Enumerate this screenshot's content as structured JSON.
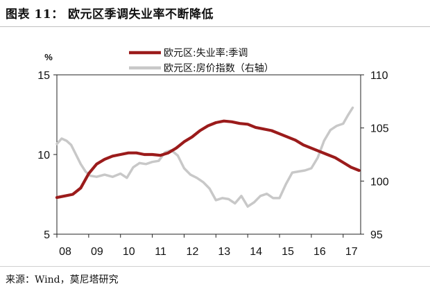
{
  "figure": {
    "title": "图表 11：  欧元区季调失业率不断降低",
    "source": "来源：Wind，莫尼塔研究"
  },
  "chart_data": {
    "type": "line",
    "x_ticks": [
      "08",
      "09",
      "10",
      "11",
      "12",
      "13",
      "14",
      "15",
      "16",
      "17"
    ],
    "y_left": {
      "unit": "%",
      "ticks": [
        "5",
        "10",
        "15"
      ],
      "range": [
        5,
        15
      ]
    },
    "y_right": {
      "ticks": [
        "95",
        "100",
        "105",
        "110"
      ],
      "range": [
        95,
        110
      ]
    },
    "legend_position": "top-center",
    "series": [
      {
        "name": "欧元区:失业率:季调",
        "axis": "left",
        "color": "#9b1b1b",
        "x": [
          2008.0,
          2008.25,
          2008.5,
          2008.75,
          2009.0,
          2009.25,
          2009.5,
          2009.75,
          2010.0,
          2010.25,
          2010.5,
          2010.75,
          2011.0,
          2011.25,
          2011.5,
          2011.75,
          2012.0,
          2012.25,
          2012.5,
          2012.75,
          2013.0,
          2013.25,
          2013.5,
          2013.75,
          2014.0,
          2014.25,
          2014.5,
          2014.75,
          2015.0,
          2015.25,
          2015.5,
          2015.75,
          2016.0,
          2016.25,
          2016.5,
          2016.75,
          2017.0,
          2017.25,
          2017.5
        ],
        "y": [
          7.3,
          7.4,
          7.5,
          7.9,
          8.8,
          9.4,
          9.7,
          9.9,
          10.0,
          10.1,
          10.1,
          10.0,
          10.0,
          9.95,
          10.1,
          10.4,
          10.8,
          11.1,
          11.5,
          11.8,
          12.0,
          12.1,
          12.05,
          11.95,
          11.9,
          11.7,
          11.6,
          11.5,
          11.3,
          11.1,
          10.9,
          10.6,
          10.4,
          10.2,
          10.0,
          9.8,
          9.5,
          9.2,
          9.0
        ]
      },
      {
        "name": "欧元区:房价指数（右轴）",
        "axis": "right",
        "color": "#c8c8c8",
        "x": [
          2008.0,
          2008.15,
          2008.3,
          2008.45,
          2008.6,
          2008.75,
          2008.9,
          2009.05,
          2009.25,
          2009.5,
          2009.75,
          2010.0,
          2010.2,
          2010.4,
          2010.6,
          2010.8,
          2011.0,
          2011.2,
          2011.4,
          2011.6,
          2011.8,
          2012.0,
          2012.2,
          2012.4,
          2012.6,
          2012.8,
          2013.0,
          2013.2,
          2013.4,
          2013.6,
          2013.8,
          2014.0,
          2014.2,
          2014.4,
          2014.6,
          2014.8,
          2015.0,
          2015.2,
          2015.4,
          2015.6,
          2015.8,
          2016.0,
          2016.2,
          2016.4,
          2016.6,
          2016.8,
          2017.0,
          2017.15,
          2017.3
        ],
        "y": [
          103.5,
          104.0,
          103.8,
          103.4,
          102.5,
          101.6,
          100.9,
          100.5,
          100.4,
          100.6,
          100.4,
          100.7,
          100.3,
          101.3,
          101.7,
          101.6,
          101.8,
          101.9,
          102.7,
          102.9,
          102.4,
          101.2,
          100.6,
          100.3,
          99.9,
          99.3,
          98.2,
          98.4,
          98.3,
          97.9,
          98.6,
          97.6,
          98.0,
          98.6,
          98.8,
          98.4,
          98.4,
          99.7,
          100.8,
          100.9,
          101.0,
          101.2,
          102.2,
          103.8,
          104.8,
          105.2,
          105.4,
          106.2,
          106.9
        ]
      }
    ]
  }
}
